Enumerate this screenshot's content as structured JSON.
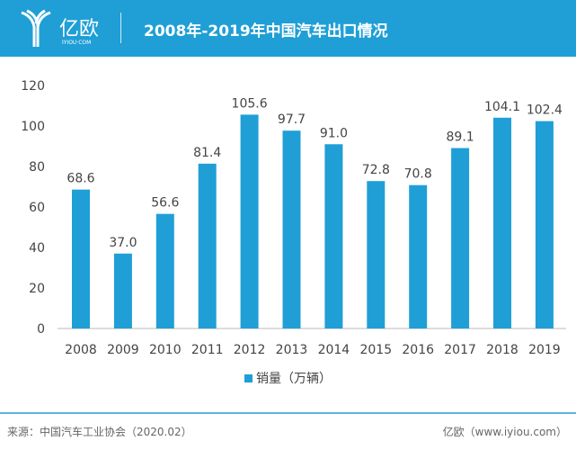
{
  "header": {
    "logo_text": "亿欧",
    "logo_sub": "IYIOU·COM",
    "title": "2008年-2019年中国汽车出口情况"
  },
  "chart_data": {
    "type": "bar",
    "title": "2008年-2019年中国汽车出口情况",
    "categories": [
      "2008",
      "2009",
      "2010",
      "2011",
      "2012",
      "2013",
      "2014",
      "2015",
      "2016",
      "2017",
      "2018",
      "2019"
    ],
    "series": [
      {
        "name": "销量（万辆）",
        "values": [
          68.6,
          37.0,
          56.6,
          81.4,
          105.6,
          97.7,
          91.0,
          72.8,
          70.8,
          89.1,
          104.1,
          102.4
        ]
      }
    ],
    "value_labels": [
      "68.6",
      "37.0",
      "56.6",
      "81.4",
      "105.6",
      "97.7",
      "91.0",
      "72.8",
      "70.8",
      "89.1",
      "104.1",
      "102.4"
    ],
    "yticks": [
      "0",
      "20",
      "40",
      "60",
      "80",
      "100",
      "120"
    ],
    "ylim": [
      0,
      120
    ],
    "grid": false,
    "legend": "bottom",
    "color": "#1f9fd6"
  },
  "footer": {
    "source": "来源：中国汽车工业协会（2020.02）",
    "credit": "亿欧（www.iyiou.com）"
  }
}
